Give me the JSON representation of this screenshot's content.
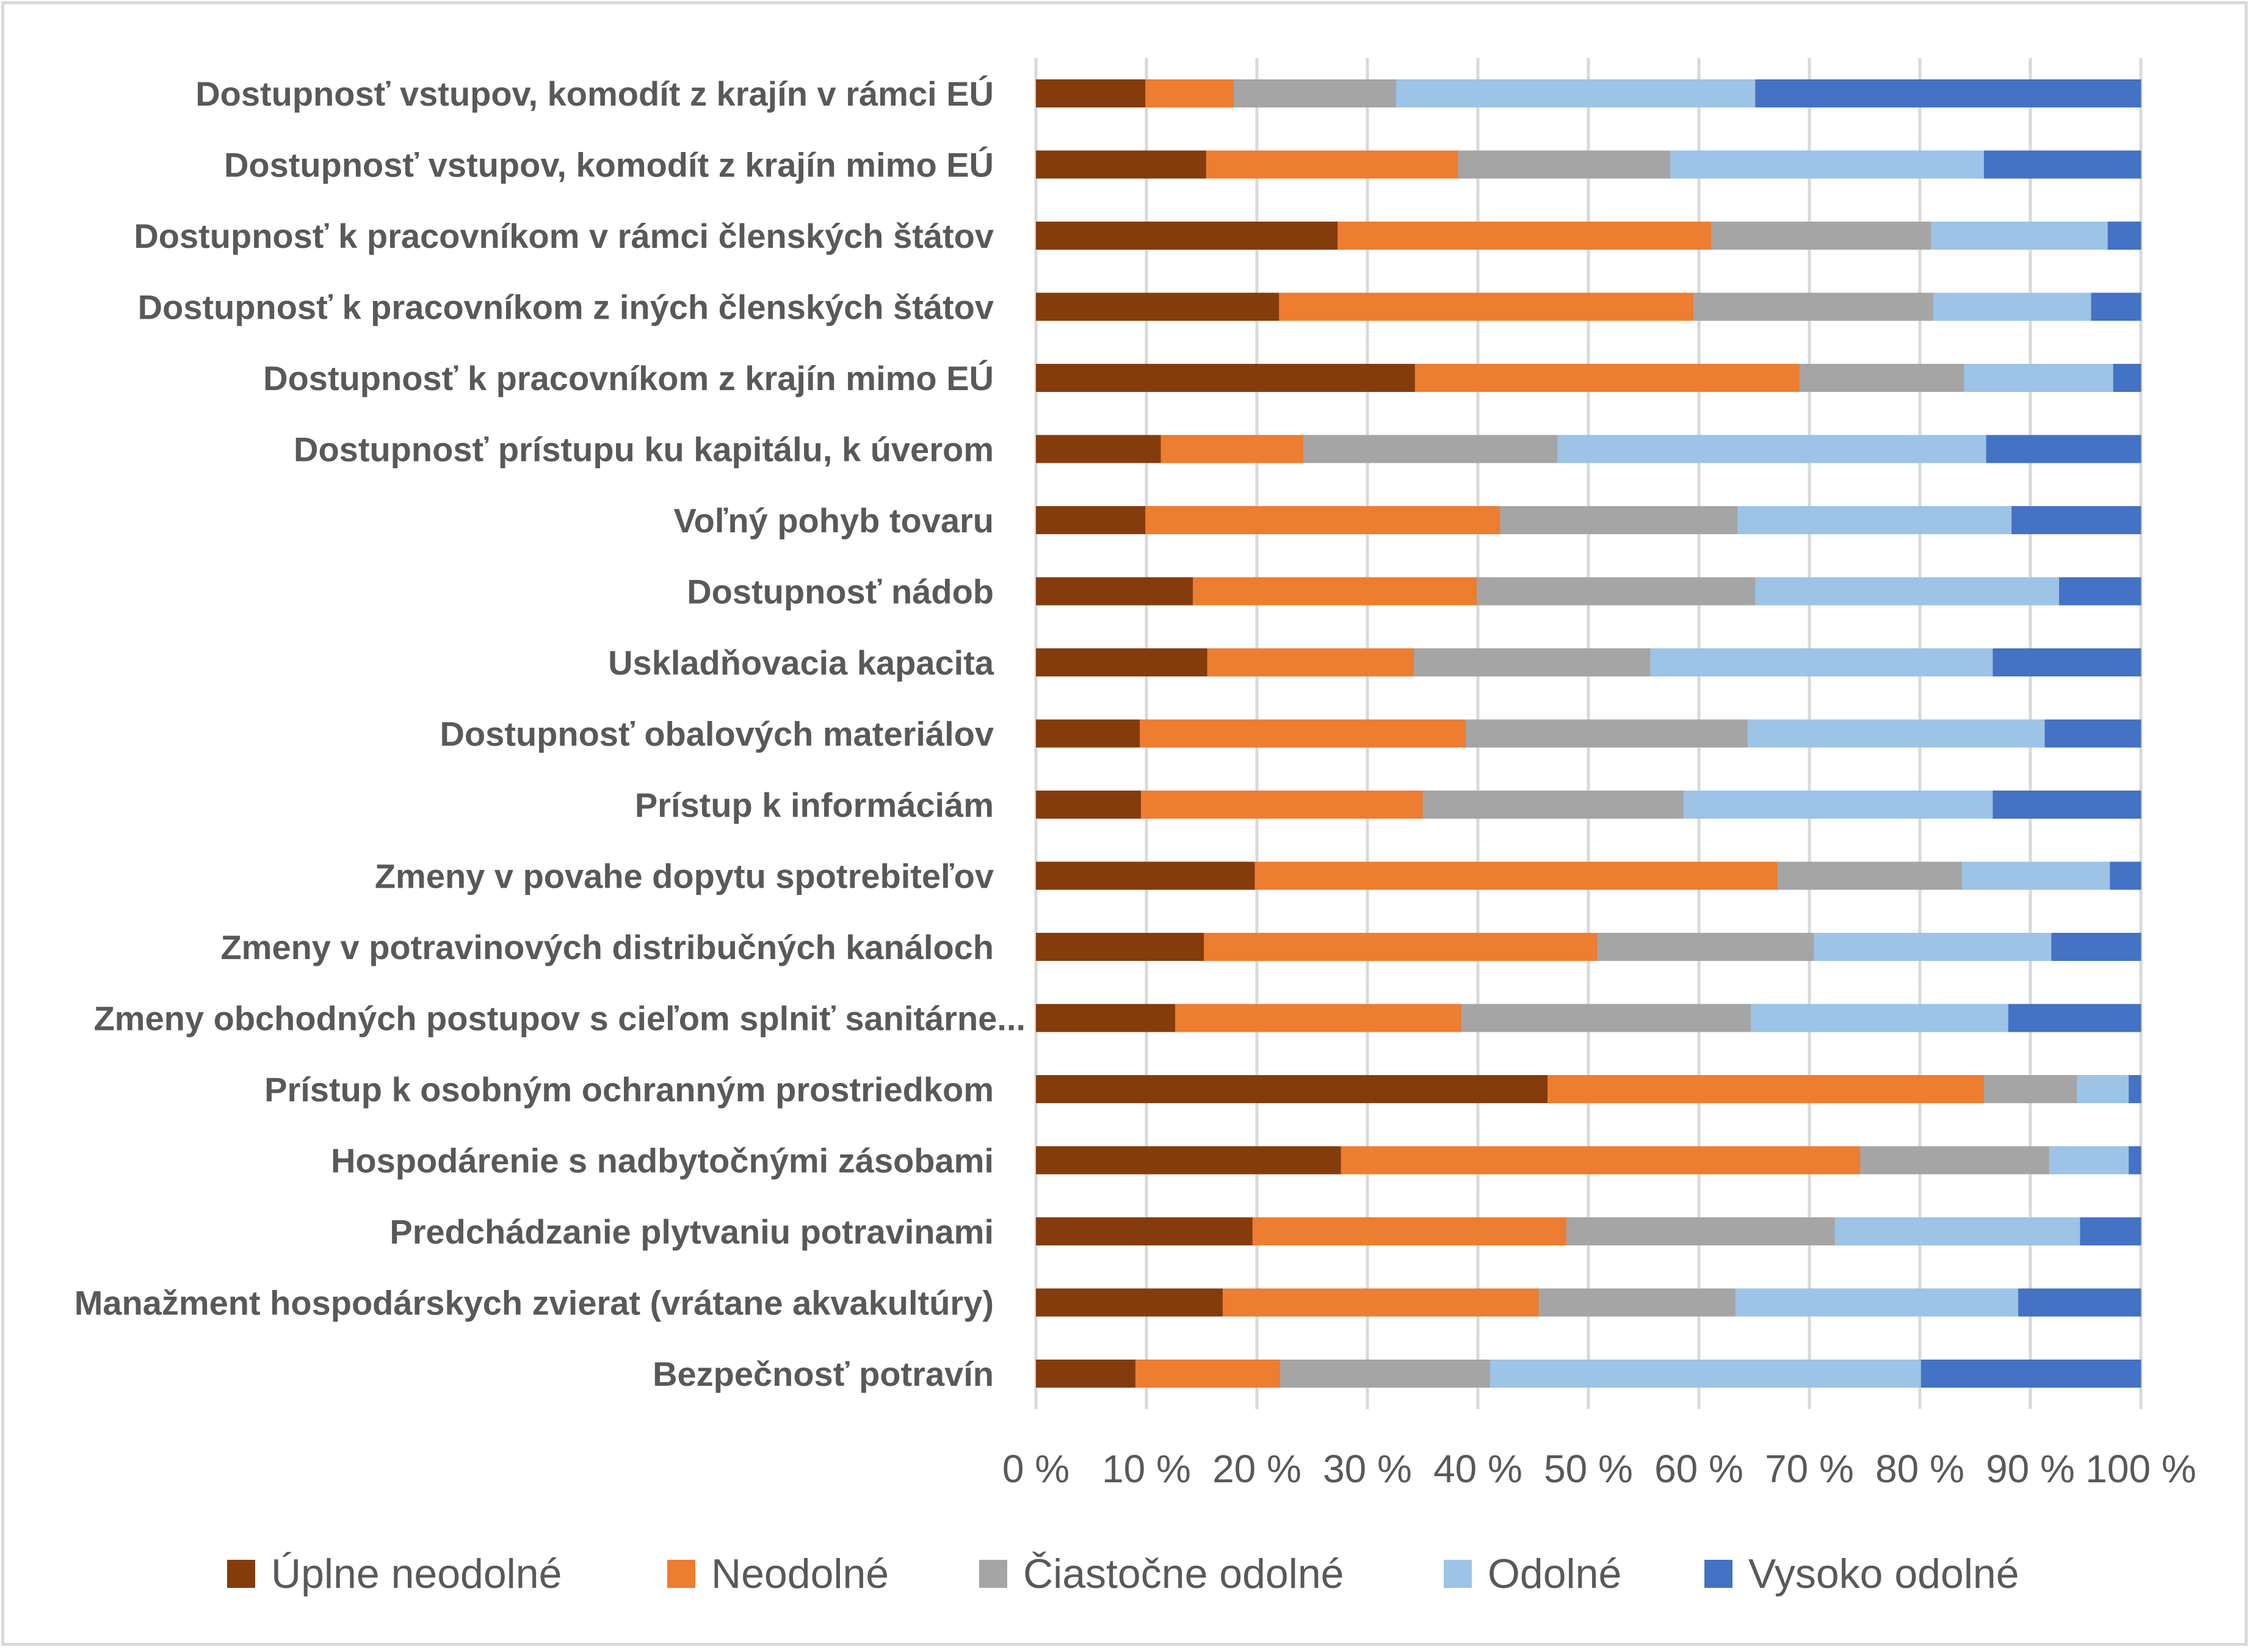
{
  "chart_data": {
    "type": "bar",
    "orientation": "horizontal",
    "stacked": "percent",
    "title": "",
    "xlabel": "",
    "ylabel": "",
    "xlim": [
      0,
      100
    ],
    "x_ticks": [
      "0 %",
      "10 %",
      "20 %",
      "30 %",
      "40 %",
      "50 %",
      "60 %",
      "70 %",
      "80 %",
      "90 %",
      "100 %"
    ],
    "grid": true,
    "legend_position": "bottom",
    "categories": [
      "Dostupnosť vstupov, komodít z krajín v rámci EÚ",
      "Dostupnosť vstupov, komodít z krajín mimo EÚ",
      "Dostupnosť k pracovníkom v rámci členských štátov",
      "Dostupnosť k pracovníkom z iných členských štátov",
      "Dostupnosť k pracovníkom z krajín mimo EÚ",
      "Dostupnosť prístupu ku kapitálu, k úverom",
      "Voľný pohyb tovaru",
      "Dostupnosť nádob",
      "Uskladňovacia kapacita",
      "Dostupnosť obalových materiálov",
      "Prístup k informáciám",
      "Zmeny v povahe dopytu spotrebiteľov",
      "Zmeny v potravinových distribučných kanáloch",
      "Zmeny obchodných postupov s cieľom splniť sanitárne...",
      "Prístup k osobným ochranným prostriedkom",
      "Hospodárenie s nadbytočnými zásobami",
      "Predchádzanie plytvaniu potravinami",
      "Manažment hospodárskych zvierat (vrátane akvakultúry)",
      "Bezpečnosť potravín"
    ],
    "series": [
      {
        "name": "Úplne neodolné",
        "color": "#843C0C",
        "values": [
          9.9,
          15.4,
          27.3,
          22.0,
          34.3,
          11.3,
          9.9,
          14.2,
          15.5,
          9.4,
          9.5,
          19.8,
          15.2,
          12.6,
          46.3,
          27.6,
          19.6,
          16.9,
          9.0
        ]
      },
      {
        "name": "Neodolné",
        "color": "#ED7D31",
        "values": [
          8.0,
          22.8,
          33.8,
          37.5,
          34.8,
          12.9,
          32.1,
          25.7,
          18.7,
          29.5,
          25.5,
          47.3,
          35.6,
          25.9,
          39.5,
          47.0,
          28.4,
          28.6,
          13.1
        ]
      },
      {
        "name": "Čiastočne odolné",
        "color": "#A5A5A5",
        "values": [
          14.7,
          19.2,
          19.9,
          21.7,
          14.9,
          23.0,
          21.5,
          25.2,
          21.4,
          25.5,
          23.6,
          16.7,
          19.6,
          26.2,
          8.4,
          17.1,
          24.3,
          17.8,
          19.0
        ]
      },
      {
        "name": "Odolné",
        "color": "#9DC3E6",
        "values": [
          32.5,
          28.4,
          16.0,
          14.3,
          13.5,
          38.8,
          24.8,
          27.5,
          31.0,
          26.9,
          28.0,
          13.4,
          21.5,
          23.3,
          4.7,
          7.2,
          22.2,
          25.6,
          39.0
        ]
      },
      {
        "name": "Vysoko odolné",
        "color": "#4472C4",
        "values": [
          34.9,
          14.2,
          3.0,
          4.5,
          2.5,
          14.0,
          11.7,
          7.4,
          13.4,
          8.7,
          13.4,
          2.8,
          8.1,
          12.0,
          1.1,
          1.1,
          5.5,
          11.1,
          19.9
        ]
      }
    ]
  }
}
